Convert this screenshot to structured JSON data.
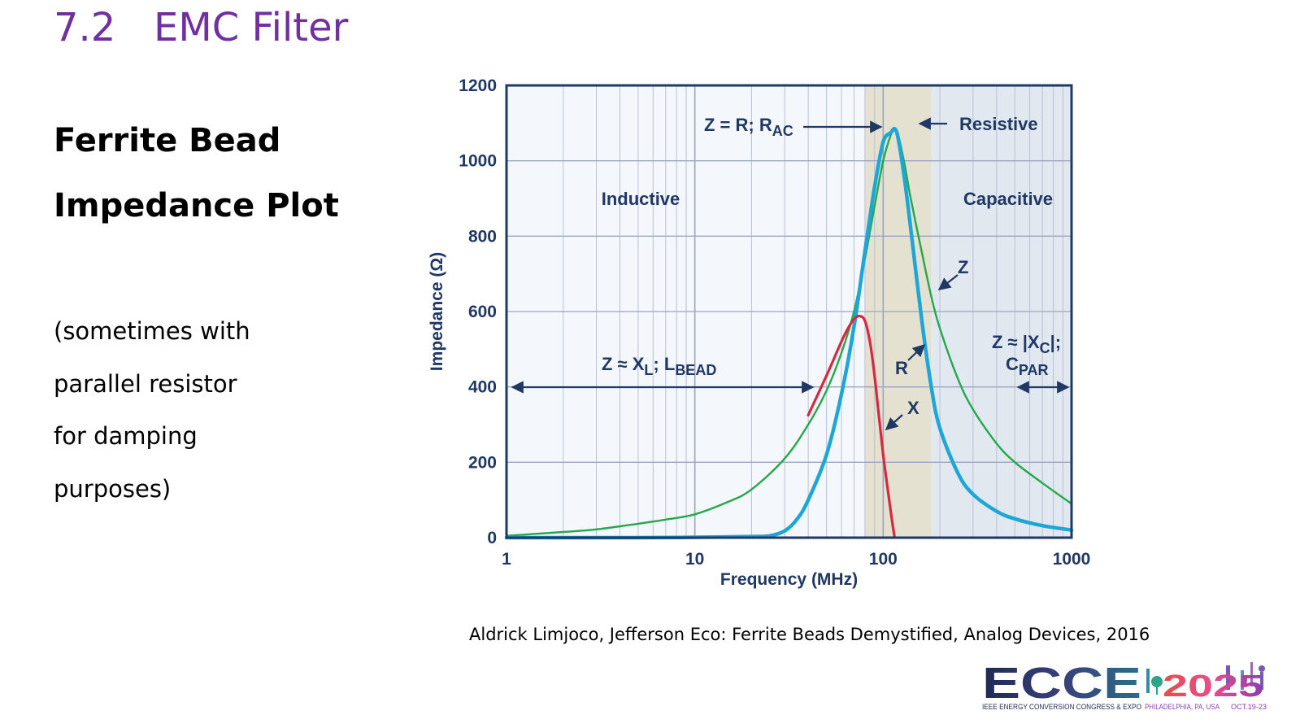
{
  "slide": {
    "section_number": "7.2",
    "section_title": "EMC Filter",
    "heading_line1": "Ferrite Bead",
    "heading_line2": "Impedance Plot",
    "note_lines": [
      "(sometimes with",
      "parallel resistor",
      "for damping",
      "purposes)"
    ],
    "citation": "Aldrick Limjoco, Jefferson Eco: Ferrite Beads Demystified, Analog Devices, 2016"
  },
  "logo": {
    "wordmark": "ECCE",
    "year": "2025",
    "tagline": "IEEE ENERGY CONVERSION CONGRESS & EXPO",
    "location": "PHILADELPHIA, PA, USA",
    "dates": "OCT.19-23"
  },
  "colors": {
    "title": "#7030a0",
    "axis": "#1f3864",
    "curve_Z": "#23a84b",
    "curve_R": "#1ea7d6",
    "curve_X": "#d8283f",
    "resistive_band": "#e4e1d0",
    "capacitive_bg": "#e2e8f0",
    "plot_bg": "#f4f7fb"
  },
  "chart_data": {
    "type": "line",
    "x_scale": "log",
    "xlabel": "Frequency (MHz)",
    "ylabel": "Impedance (Ω)",
    "xlim": [
      1,
      1000
    ],
    "ylim": [
      0,
      1200
    ],
    "x_ticks": [
      1,
      10,
      100,
      1000
    ],
    "x_tick_labels": [
      "1",
      "10",
      "100",
      "1000"
    ],
    "y_ticks": [
      0,
      200,
      400,
      600,
      800,
      1000,
      1200
    ],
    "y_tick_labels": [
      "0",
      "200",
      "400",
      "600",
      "800",
      "1000",
      "1200"
    ],
    "grid": true,
    "regions": [
      {
        "name": "Inductive",
        "label": "Inductive"
      },
      {
        "name": "Resistive",
        "label": "Resistive",
        "x_range": [
          80,
          180
        ]
      },
      {
        "name": "Capacitive",
        "label": "Capacitive",
        "x_range": [
          180,
          1000
        ]
      }
    ],
    "series": [
      {
        "name": "Z",
        "x": [
          1,
          2,
          3,
          5,
          7,
          10,
          15,
          20,
          30,
          40,
          50,
          60,
          70,
          80,
          90,
          100,
          110,
          115,
          120,
          130,
          140,
          160,
          180,
          200,
          250,
          300,
          400,
          500,
          700,
          1000
        ],
        "y": [
          5,
          15,
          22,
          37,
          48,
          62,
          95,
          128,
          210,
          300,
          390,
          490,
          600,
          740,
          880,
          1000,
          1070,
          1085,
          1070,
          990,
          900,
          760,
          640,
          555,
          420,
          340,
          250,
          200,
          145,
          90
        ]
      },
      {
        "name": "R",
        "x": [
          1,
          5,
          10,
          20,
          25,
          30,
          35,
          40,
          50,
          60,
          70,
          80,
          90,
          100,
          110,
          115,
          120,
          130,
          140,
          160,
          180,
          200,
          250,
          300,
          400,
          500,
          700,
          1000
        ],
        "y": [
          0,
          0,
          1,
          3,
          5,
          18,
          50,
          100,
          220,
          380,
          560,
          760,
          930,
          1050,
          1075,
          1085,
          1060,
          950,
          820,
          580,
          400,
          290,
          170,
          115,
          70,
          50,
          32,
          20
        ]
      },
      {
        "name": "X",
        "x": [
          40,
          50,
          60,
          65,
          70,
          75,
          80,
          85,
          90,
          95,
          100,
          105,
          110,
          115
        ],
        "y": [
          325,
          430,
          520,
          555,
          580,
          588,
          575,
          520,
          430,
          320,
          220,
          140,
          65,
          0
        ]
      }
    ],
    "annotations": [
      {
        "id": "z_eq_r",
        "text": "Z = R; R",
        "sub": "AC"
      },
      {
        "id": "resistive",
        "text": "Resistive"
      },
      {
        "id": "inductive",
        "text": "Inductive"
      },
      {
        "id": "capacitive",
        "text": "Capacitive"
      },
      {
        "id": "z_xl",
        "text": "Z ≈ X",
        "sub1": "L",
        "text2": "; L",
        "sub2": "BEAD"
      },
      {
        "id": "z_xc",
        "text": "Z ≈ |X",
        "sub1": "C",
        "text2": "|;",
        "line2": "C",
        "sub2": "PAR"
      },
      {
        "id": "label_z",
        "text": "Z"
      },
      {
        "id": "label_r",
        "text": "R"
      },
      {
        "id": "label_x",
        "text": "X"
      }
    ]
  }
}
